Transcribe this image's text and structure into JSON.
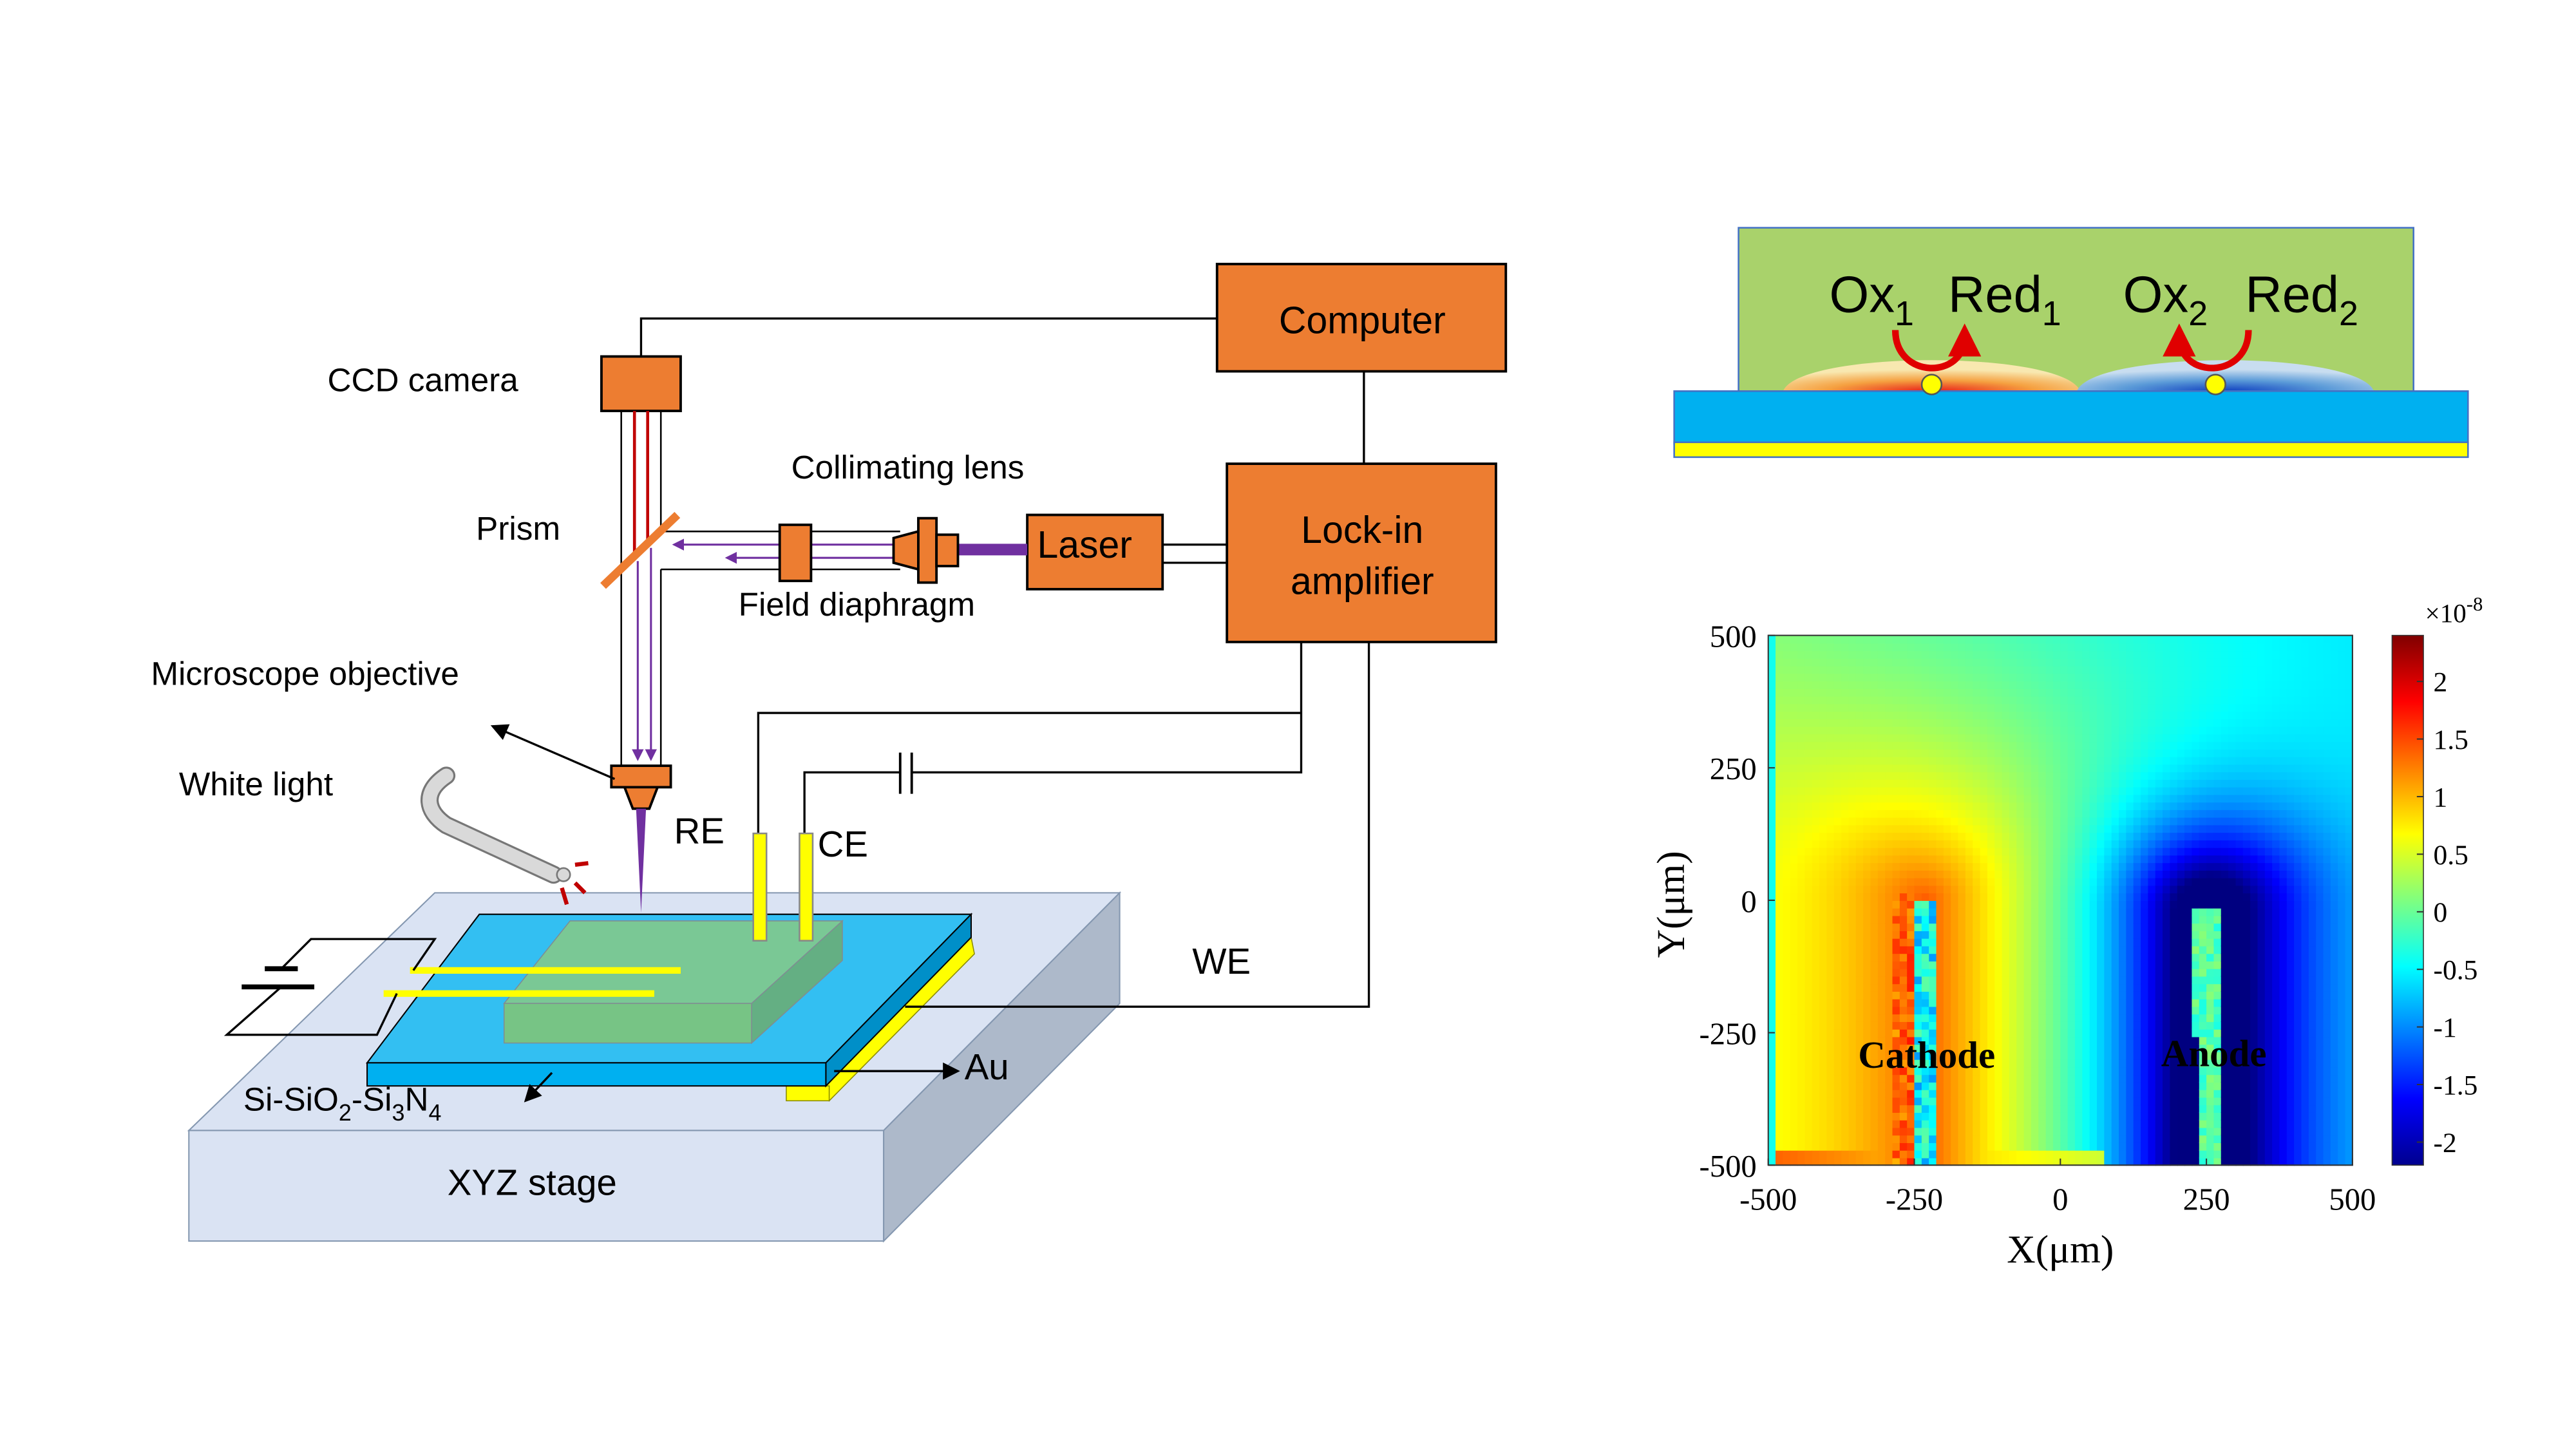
{
  "setup": {
    "computer": "Computer",
    "lockin_line1": "Lock-in",
    "lockin_line2": "amplifier",
    "laser": "Laser",
    "ccd_camera": "CCD camera",
    "collimating_lens": "Collimating lens",
    "prism": "Prism",
    "field_diaphragm": "Field diaphragm",
    "microscope_objective": "Microscope objective",
    "white_light": "White light",
    "re": "RE",
    "ce": "CE",
    "we": "WE",
    "au": "Au",
    "xyz_stage": "XYZ stage",
    "substrate": [
      {
        "text": "Si-SiO",
        "sub": false
      },
      {
        "text": "2",
        "sub": true
      },
      {
        "text": "-Si",
        "sub": false
      },
      {
        "text": "3",
        "sub": true
      },
      {
        "text": "N",
        "sub": false
      },
      {
        "text": "4",
        "sub": true
      }
    ],
    "colors": {
      "box": "#ED7D31",
      "chip": "#00B0F0",
      "solution": "#7FC58A",
      "stage": "#DAE3F3",
      "gold": "#FFFF00",
      "beam": "#7030A0"
    }
  },
  "scheme": {
    "species": [
      {
        "base": "Ox",
        "sub": "1"
      },
      {
        "base": "Red",
        "sub": "1"
      },
      {
        "base": "Ox",
        "sub": "2"
      },
      {
        "base": "Red",
        "sub": "2"
      }
    ],
    "colors": {
      "solution": "#A9D26B",
      "substrate": "#00B0F0",
      "electrode": "#FFFF00",
      "arrow": "#E00000"
    }
  },
  "chart_data": {
    "type": "heatmap",
    "colormap": "jet",
    "xlabel": "X(μm)",
    "ylabel": "Y(μm)",
    "xlim": [
      -500,
      500
    ],
    "ylim": [
      -500,
      500
    ],
    "xticks": [
      "-500",
      "-250",
      "0",
      "250",
      "500"
    ],
    "yticks": [
      "500",
      "250",
      "0",
      "-250",
      "-500"
    ],
    "colorbar": {
      "exponent_label": "×10",
      "exponent": "-8",
      "clim": [
        -2.2,
        2.4
      ],
      "ticks": [
        "2",
        "1.5",
        "1",
        "0.5",
        "0",
        "-0.5",
        "-1",
        "-1.5",
        "-2"
      ]
    },
    "annotations": [
      "Cathode",
      "Anode"
    ],
    "electrodes": [
      {
        "name": "Cathode",
        "x": -230,
        "y_range": [
          -500,
          0
        ],
        "sign": "positive"
      },
      {
        "name": "Anode",
        "x": 250,
        "y_range": [
          -500,
          -20
        ],
        "sign": "negative"
      }
    ],
    "grid": false
  }
}
